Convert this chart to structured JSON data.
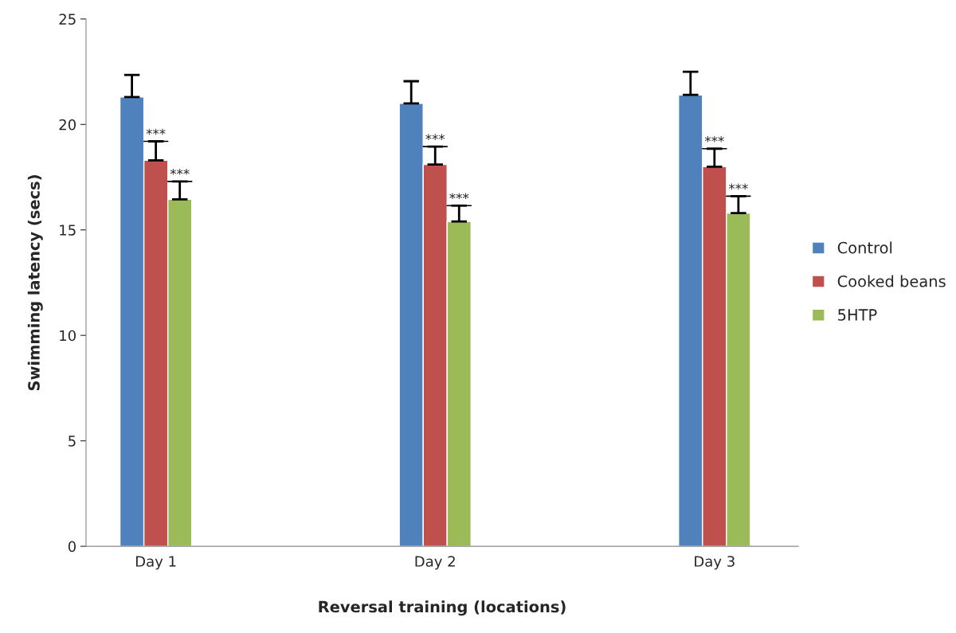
{
  "chart_data": {
    "type": "bar",
    "xlabel": "Reversal training (locations)",
    "ylabel": "Swimming latency (secs)",
    "categories": [
      "Day 1",
      "Day 2",
      "Day 3"
    ],
    "series": [
      {
        "name": "Control",
        "color": "#4f81bd",
        "values": [
          21.3,
          21.0,
          21.4
        ],
        "errors": [
          [
            21.3,
            22.35
          ],
          [
            21.0,
            22.05
          ],
          [
            21.4,
            22.5
          ]
        ]
      },
      {
        "name": "Cooked beans",
        "color": "#c0504d",
        "values": [
          18.3,
          18.1,
          18.0
        ],
        "errors": [
          [
            18.3,
            19.2
          ],
          [
            18.1,
            18.95
          ],
          [
            18.0,
            18.85
          ]
        ]
      },
      {
        "name": "5HTP",
        "color": "#9bbb59",
        "values": [
          16.45,
          15.4,
          15.8
        ],
        "errors": [
          [
            16.45,
            17.3
          ],
          [
            15.4,
            16.15
          ],
          [
            15.8,
            16.6
          ]
        ]
      }
    ],
    "annotations": [
      "***",
      "***",
      "***",
      "***",
      "***",
      "***"
    ],
    "ylim": [
      0,
      25
    ],
    "yticks": [
      0,
      5,
      10,
      15,
      20,
      25
    ],
    "grid": false,
    "legend": "right"
  }
}
